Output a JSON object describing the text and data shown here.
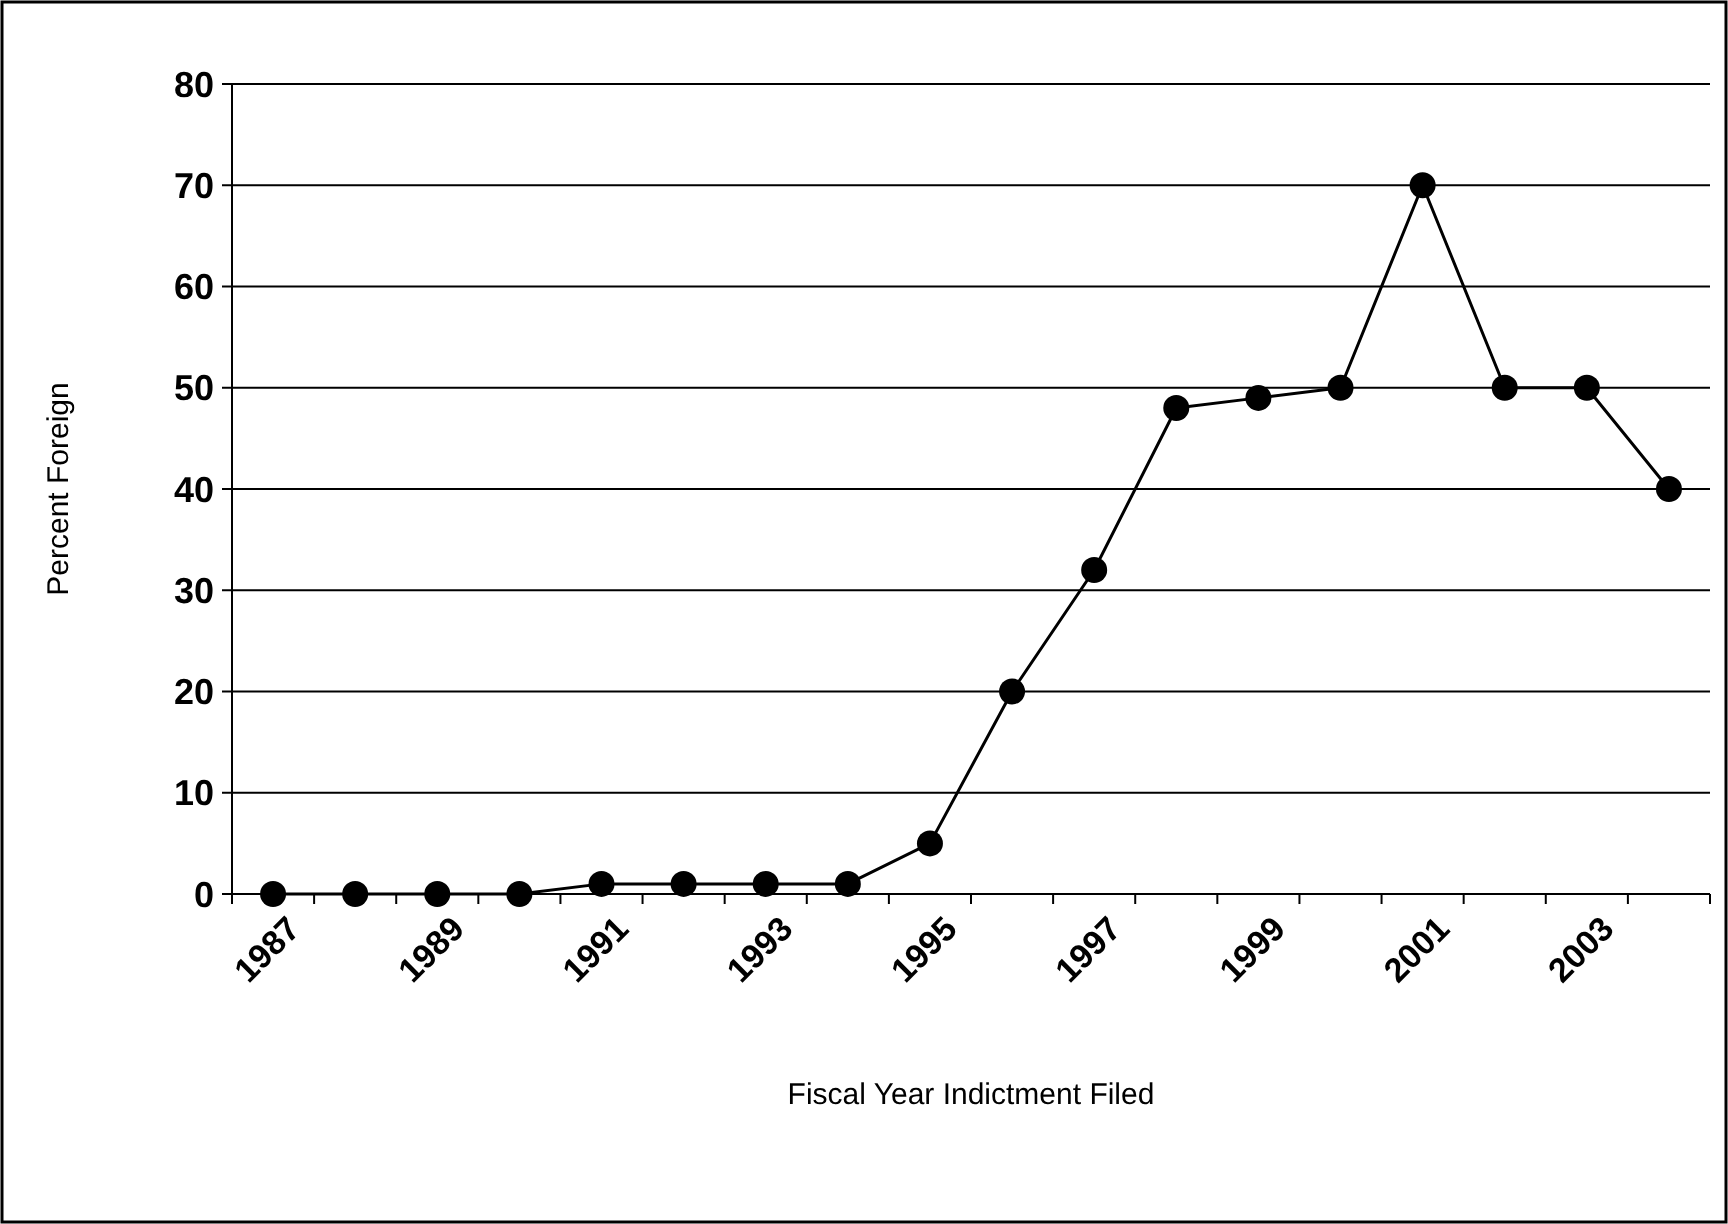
{
  "chart_data": {
    "type": "line",
    "xlabel": "Fiscal Year Indictment Filed",
    "ylabel": "Percent Foreign",
    "categories": [
      "1987",
      null,
      "1989",
      null,
      "1991",
      null,
      "1993",
      null,
      "1995",
      null,
      "1997",
      null,
      "1999",
      null,
      "2001",
      null,
      "2003",
      null
    ],
    "series": [
      {
        "color": "#000000",
        "values": [
          0,
          0,
          0,
          0,
          1,
          1,
          1,
          1,
          5,
          20,
          32,
          48,
          49,
          50,
          70,
          50,
          50,
          40
        ]
      }
    ],
    "ylim": [
      0,
      80
    ],
    "yticks": [
      0,
      10,
      20,
      30,
      40,
      50,
      60,
      70,
      80
    ],
    "grid": "y",
    "marker": "circle",
    "line_style": "solid"
  }
}
